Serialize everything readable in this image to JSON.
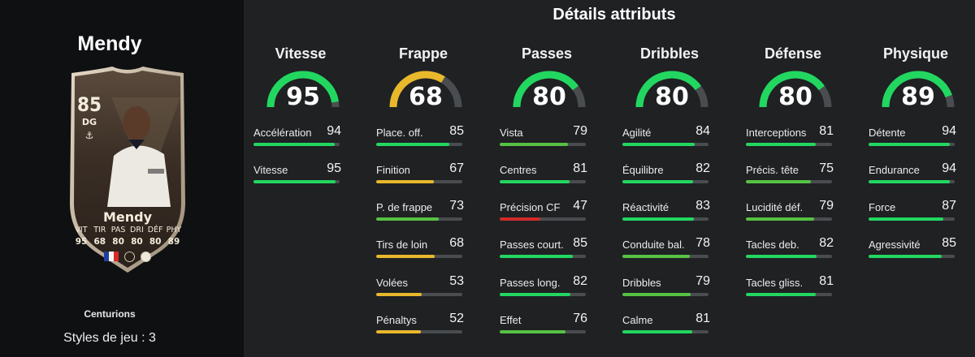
{
  "left": {
    "title": "Mendy",
    "card": {
      "rating": "85",
      "position": "DG",
      "anchor_icon": "⚓",
      "name": "Mendy",
      "stat_labels": [
        "VIT",
        "TIR",
        "PAS",
        "DRI",
        "DÉF",
        "PHY"
      ],
      "stat_values": [
        "95",
        "68",
        "80",
        "80",
        "80",
        "89"
      ],
      "nation": "france-flag",
      "league": "laliga-icon",
      "club": "real-madrid-crest"
    },
    "subtitle": "Centurions",
    "playstyles": "Styles de jeu : 3"
  },
  "details_title": "Détails attributs",
  "colors": {
    "high": "#22d760",
    "mid_green": "#56c243",
    "medium": "#e8b82c",
    "low": "#d12a2a",
    "track": "#4a4d50"
  },
  "categories": [
    {
      "name": "Vitesse",
      "value": 95,
      "stats": [
        {
          "label": "Accélération",
          "value": 94
        },
        {
          "label": "Vitesse",
          "value": 95
        }
      ]
    },
    {
      "name": "Frappe",
      "value": 68,
      "stats": [
        {
          "label": "Place. off.",
          "value": 85
        },
        {
          "label": "Finition",
          "value": 67
        },
        {
          "label": "P. de frappe",
          "value": 73
        },
        {
          "label": "Tirs de loin",
          "value": 68
        },
        {
          "label": "Volées",
          "value": 53
        },
        {
          "label": "Pénaltys",
          "value": 52
        }
      ]
    },
    {
      "name": "Passes",
      "value": 80,
      "stats": [
        {
          "label": "Vista",
          "value": 79
        },
        {
          "label": "Centres",
          "value": 81
        },
        {
          "label": "Précision CF",
          "value": 47
        },
        {
          "label": "Passes court.",
          "value": 85
        },
        {
          "label": "Passes long.",
          "value": 82
        },
        {
          "label": "Effet",
          "value": 76
        }
      ]
    },
    {
      "name": "Dribbles",
      "value": 80,
      "stats": [
        {
          "label": "Agilité",
          "value": 84
        },
        {
          "label": "Équilibre",
          "value": 82
        },
        {
          "label": "Réactivité",
          "value": 83
        },
        {
          "label": "Conduite bal.",
          "value": 78
        },
        {
          "label": "Dribbles",
          "value": 79
        },
        {
          "label": "Calme",
          "value": 81
        }
      ]
    },
    {
      "name": "Défense",
      "value": 80,
      "stats": [
        {
          "label": "Interceptions",
          "value": 81
        },
        {
          "label": "Précis. tête",
          "value": 75
        },
        {
          "label": "Lucidité déf.",
          "value": 79
        },
        {
          "label": "Tacles deb.",
          "value": 82
        },
        {
          "label": "Tacles gliss.",
          "value": 81
        }
      ]
    },
    {
      "name": "Physique",
      "value": 89,
      "stats": [
        {
          "label": "Détente",
          "value": 94
        },
        {
          "label": "Endurance",
          "value": 94
        },
        {
          "label": "Force",
          "value": 87
        },
        {
          "label": "Agressivité",
          "value": 85
        }
      ]
    }
  ]
}
